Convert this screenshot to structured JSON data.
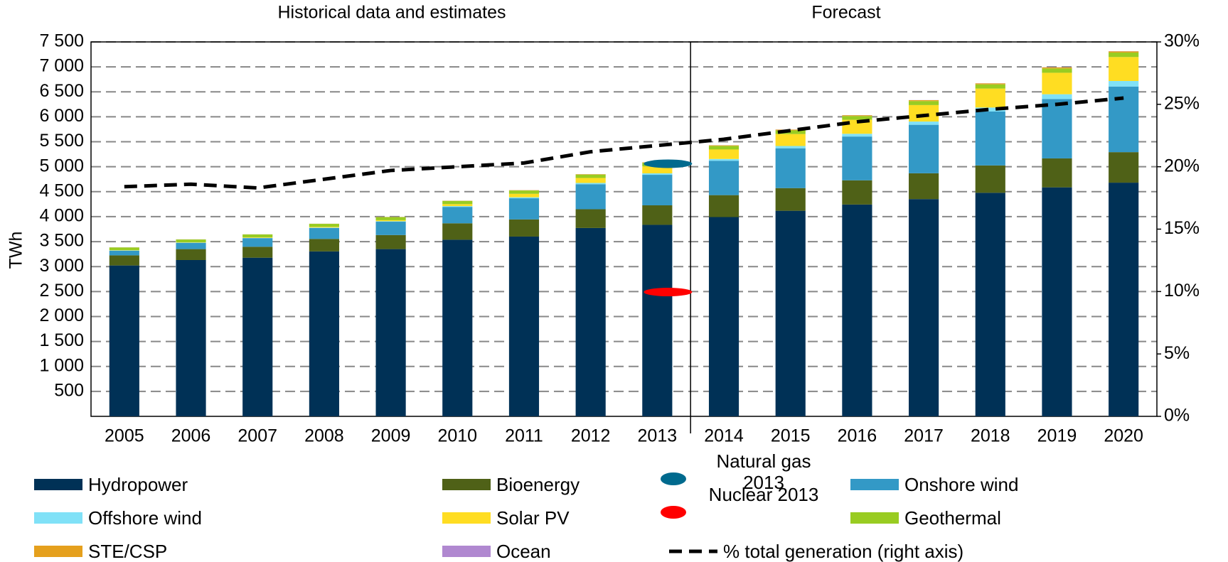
{
  "chart_data": {
    "type": "bar",
    "annotations": [
      "Historical data and estimates",
      "Forecast"
    ],
    "y_label": "TWh",
    "categories": [
      "2005",
      "2006",
      "2007",
      "2008",
      "2009",
      "2010",
      "2011",
      "2012",
      "2013",
      "2014",
      "2015",
      "2016",
      "2017",
      "2018",
      "2019",
      "2020"
    ],
    "stacked": true,
    "series": [
      {
        "name": "Hydropower",
        "color": "#003156",
        "values": [
          3022,
          3131,
          3178,
          3304,
          3350,
          3538,
          3601,
          3773,
          3836,
          3992,
          4118,
          4243,
          4352,
          4478,
          4587,
          4681
        ]
      },
      {
        "name": "Bioenergy",
        "color": "#4f6117",
        "values": [
          203,
          219,
          219,
          250,
          282,
          329,
          344,
          376,
          391,
          439,
          454,
          485,
          517,
          548,
          580,
          611
        ]
      },
      {
        "name": "Onshore wind",
        "color": "#3399c6",
        "values": [
          94,
          126,
          173,
          219,
          267,
          329,
          423,
          501,
          611,
          689,
          798,
          877,
          971,
          1080,
          1190,
          1315
        ]
      },
      {
        "name": "Offshore wind",
        "color": "#80e1f7",
        "values": [
          5,
          5,
          6,
          8,
          10,
          15,
          20,
          25,
          30,
          35,
          45,
          55,
          65,
          80,
          95,
          110
        ]
      },
      {
        "name": "Solar PV",
        "color": "#ffdd22",
        "values": [
          5,
          5,
          10,
          15,
          20,
          40,
          70,
          100,
          140,
          190,
          240,
          280,
          330,
          380,
          430,
          480
        ]
      },
      {
        "name": "Geothermal",
        "color": "#99cc22",
        "values": [
          55,
          57,
          58,
          60,
          62,
          64,
          66,
          68,
          70,
          72,
          74,
          76,
          80,
          84,
          87,
          90
        ]
      },
      {
        "name": "STE/CSP",
        "color": "#e5a01d",
        "values": [
          1,
          1,
          1,
          2,
          3,
          4,
          6,
          8,
          10,
          12,
          14,
          16,
          18,
          20,
          22,
          25
        ]
      },
      {
        "name": "Ocean",
        "color": "#b088d0",
        "values": [
          1,
          1,
          1,
          1,
          1,
          1,
          1,
          1,
          1,
          1,
          2,
          2,
          2,
          2,
          3,
          3
        ]
      },
      {
        "name": "% total generation (right axis)",
        "type": "line",
        "axis": "y2",
        "color": "#000000",
        "values": [
          18.4,
          18.6,
          18.3,
          19.0,
          19.7,
          20.0,
          20.3,
          21.2,
          21.7,
          22.2,
          22.9,
          23.6,
          24.1,
          24.6,
          25.0,
          25.5
        ]
      }
    ],
    "markers": [
      {
        "name": "Natural gas 2013",
        "color": "#006a8e",
        "x": "2013",
        "value": 5060
      },
      {
        "name": "Nuclear 2013",
        "color": "#ff0000",
        "x": "2013",
        "value": 2490
      }
    ],
    "ylim": [
      0,
      7500
    ],
    "yticks": [
      500,
      {
        "value": 1000,
        "label": "1 000"
      },
      {
        "value": 1500,
        "label": "1 500"
      },
      {
        "value": 2000,
        "label": "2 000"
      },
      {
        "value": 2500,
        "label": "2 500"
      },
      {
        "value": 3000,
        "label": "3 000"
      },
      {
        "value": 3500,
        "label": "3 500"
      },
      {
        "value": 4000,
        "label": "4 000"
      },
      {
        "value": 4500,
        "label": "4 500"
      },
      {
        "value": 5000,
        "label": "5 000"
      },
      {
        "value": 5500,
        "label": "5 500"
      },
      {
        "value": 6000,
        "label": "6 000"
      },
      {
        "value": 6500,
        "label": "6 500"
      },
      {
        "value": 7000,
        "label": "7 000"
      },
      {
        "value": 7500,
        "label": "7 500"
      }
    ],
    "y2lim": [
      0,
      30
    ],
    "y2ticks": [
      {
        "value": 0,
        "label": "0%"
      },
      {
        "value": 5,
        "label": "5%"
      },
      {
        "value": 10,
        "label": "10%"
      },
      {
        "value": 15,
        "label": "15%"
      },
      {
        "value": 20,
        "label": "20%"
      },
      {
        "value": 25,
        "label": "25%"
      },
      {
        "value": 30,
        "label": "30%"
      }
    ],
    "grid": true,
    "legend": "bottom"
  }
}
